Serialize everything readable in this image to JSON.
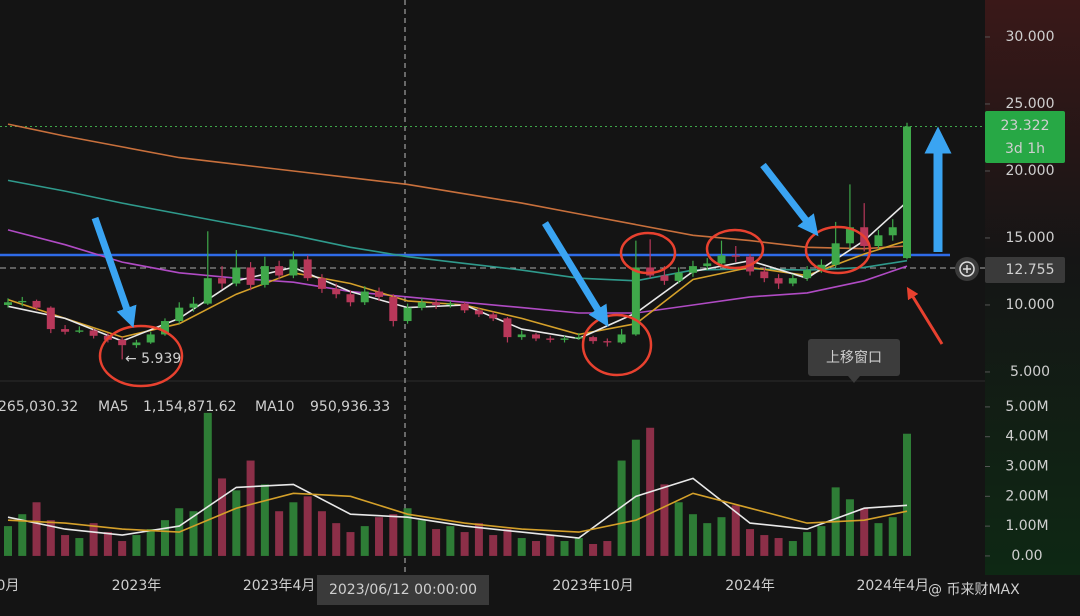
{
  "chart_data": {
    "type": "candlestick",
    "categories": [
      "0月",
      null,
      null,
      null,
      null,
      null,
      null,
      null,
      null,
      "2023年",
      null,
      null,
      null,
      null,
      null,
      null,
      null,
      null,
      null,
      "2023年4月",
      null,
      null,
      null,
      null,
      null,
      null,
      null,
      null,
      null,
      null,
      null,
      null,
      null,
      null,
      null,
      null,
      null,
      null,
      null,
      null,
      null,
      "2023年10月",
      null,
      null,
      null,
      null,
      null,
      null,
      null,
      null,
      null,
      null,
      "2024年",
      null,
      null,
      null,
      null,
      null,
      null,
      null,
      null,
      null,
      "2024年4月",
      null
    ],
    "candles": [
      [
        10.0,
        10.5,
        9.8,
        10.2
      ],
      [
        10.2,
        10.6,
        9.9,
        10.3
      ],
      [
        10.3,
        10.4,
        9.6,
        9.8
      ],
      [
        9.8,
        9.9,
        7.9,
        8.2
      ],
      [
        8.2,
        8.5,
        7.8,
        8.0
      ],
      [
        8.0,
        8.4,
        7.9,
        8.1
      ],
      [
        8.1,
        8.2,
        7.5,
        7.7
      ],
      [
        7.7,
        7.9,
        7.2,
        7.4
      ],
      [
        7.4,
        7.6,
        5.939,
        7.0
      ],
      [
        7.0,
        7.4,
        6.8,
        7.2
      ],
      [
        7.2,
        8.0,
        7.1,
        7.8
      ],
      [
        7.8,
        9.0,
        7.7,
        8.8
      ],
      [
        8.8,
        10.2,
        8.6,
        9.8
      ],
      [
        9.8,
        10.6,
        9.5,
        10.1
      ],
      [
        10.1,
        15.5,
        10.0,
        12.0
      ],
      [
        12.0,
        12.9,
        11.2,
        11.6
      ],
      [
        11.6,
        14.1,
        11.4,
        12.8
      ],
      [
        12.8,
        13.2,
        11.1,
        11.5
      ],
      [
        11.5,
        13.6,
        11.3,
        12.9
      ],
      [
        12.9,
        13.3,
        11.9,
        12.2
      ],
      [
        12.2,
        14.0,
        12.0,
        13.4
      ],
      [
        13.4,
        13.7,
        11.8,
        12.0
      ],
      [
        12.0,
        12.3,
        10.9,
        11.2
      ],
      [
        11.2,
        11.6,
        10.5,
        10.8
      ],
      [
        10.8,
        11.1,
        9.9,
        10.2
      ],
      [
        10.2,
        11.4,
        10.0,
        11.0
      ],
      [
        11.0,
        11.3,
        10.3,
        10.6
      ],
      [
        10.6,
        10.8,
        8.4,
        8.8
      ],
      [
        8.8,
        10.1,
        8.6,
        9.8
      ],
      [
        9.8,
        10.5,
        9.6,
        10.2
      ],
      [
        10.2,
        10.4,
        9.7,
        10.0
      ],
      [
        10.0,
        10.3,
        9.8,
        10.1
      ],
      [
        10.1,
        10.2,
        9.4,
        9.6
      ],
      [
        9.6,
        9.8,
        9.1,
        9.3
      ],
      [
        9.3,
        9.5,
        8.8,
        9.0
      ],
      [
        9.0,
        9.1,
        7.2,
        7.6
      ],
      [
        7.6,
        8.1,
        7.4,
        7.8
      ],
      [
        7.8,
        7.9,
        7.3,
        7.5
      ],
      [
        7.5,
        7.7,
        7.2,
        7.4
      ],
      [
        7.4,
        7.7,
        7.2,
        7.5
      ],
      [
        7.5,
        7.9,
        7.4,
        7.6
      ],
      [
        7.6,
        7.7,
        7.1,
        7.3
      ],
      [
        7.3,
        7.5,
        6.9,
        7.2
      ],
      [
        7.2,
        8.2,
        7.1,
        7.8
      ],
      [
        7.8,
        14.8,
        7.7,
        12.8
      ],
      [
        12.8,
        14.9,
        12.0,
        12.2
      ],
      [
        12.2,
        12.9,
        11.5,
        11.8
      ],
      [
        11.8,
        12.8,
        11.6,
        12.4
      ],
      [
        12.4,
        13.3,
        12.1,
        12.9
      ],
      [
        12.9,
        13.5,
        12.6,
        13.1
      ],
      [
        13.1,
        14.8,
        12.9,
        13.7
      ],
      [
        13.7,
        14.4,
        13.2,
        13.6
      ],
      [
        13.6,
        13.8,
        12.2,
        12.5
      ],
      [
        12.5,
        12.8,
        11.7,
        12.0
      ],
      [
        12.0,
        12.3,
        11.2,
        11.6
      ],
      [
        11.6,
        12.3,
        11.4,
        12.0
      ],
      [
        12.0,
        12.9,
        11.8,
        12.6
      ],
      [
        12.6,
        13.4,
        12.4,
        13.0
      ],
      [
        13.0,
        16.2,
        12.8,
        14.6
      ],
      [
        14.6,
        19.0,
        14.2,
        15.8
      ],
      [
        15.8,
        17.6,
        14.0,
        14.4
      ],
      [
        14.4,
        15.6,
        14.2,
        15.2
      ],
      [
        15.2,
        16.4,
        14.8,
        15.8
      ],
      [
        13.5,
        23.6,
        13.4,
        23.322
      ]
    ],
    "up_color": "#3fa84a",
    "down_color": "#b8385a",
    "ylim": [
      4.4,
      32.76
    ],
    "yticks": [
      {
        "value": 30,
        "label": "30.000"
      },
      {
        "value": 25,
        "label": "25.000"
      },
      {
        "value": 20,
        "label": "20.000"
      },
      {
        "value": 15,
        "label": "15.000"
      },
      {
        "value": 10,
        "label": "10.000"
      },
      {
        "value": 5,
        "label": "5.000"
      }
    ],
    "ma_x": [
      0,
      4,
      8,
      12,
      16,
      20,
      24,
      28,
      32,
      36,
      40,
      44,
      48,
      52,
      56,
      60,
      63
    ],
    "ma_series": [
      {
        "color": "#c8703c",
        "values": [
          23.5,
          22.6,
          21.8,
          21.0,
          20.5,
          20.0,
          19.5,
          19.0,
          18.3,
          17.6,
          16.8,
          16.0,
          15.2,
          14.8,
          14.3,
          14.2,
          14.4
        ]
      },
      {
        "color": "#2f9a8c",
        "values": [
          19.3,
          18.5,
          17.6,
          16.8,
          16.0,
          15.2,
          14.3,
          13.6,
          13.1,
          12.6,
          12.0,
          11.8,
          12.6,
          12.7,
          12.6,
          12.8,
          13.3
        ]
      },
      {
        "color": "#b04bc4",
        "values": [
          15.6,
          14.5,
          13.2,
          12.4,
          12.0,
          11.7,
          11.0,
          10.6,
          10.2,
          9.8,
          9.4,
          9.4,
          10.0,
          10.6,
          10.9,
          11.8,
          12.9
        ]
      },
      {
        "color": "#d4a02a",
        "values": [
          10.4,
          9.0,
          7.6,
          8.6,
          10.8,
          12.4,
          11.6,
          10.3,
          10.0,
          9.0,
          7.8,
          8.6,
          11.9,
          12.8,
          12.2,
          13.8,
          14.8
        ]
      },
      {
        "color": "#e8e8e8",
        "values": [
          9.9,
          9.0,
          7.3,
          9.0,
          11.8,
          12.8,
          11.0,
          9.8,
          10.0,
          8.2,
          7.5,
          9.4,
          12.5,
          13.3,
          12.0,
          14.8,
          17.7
        ]
      }
    ],
    "low_label": "← 5.939",
    "last_price": 23.322,
    "countdown": "3d 1h",
    "cross_price": 12.755,
    "crosshair_label": "2023/06/12 00:00:00",
    "tooltip": "上移窗口",
    "volume": [
      1000000,
      1400000,
      1800000,
      1200000,
      700000,
      600000,
      1100000,
      800000,
      500000,
      700000,
      900000,
      1200000,
      1600000,
      1500000,
      4800000,
      2600000,
      2200000,
      3200000,
      2400000,
      1500000,
      1800000,
      2000000,
      1500000,
      1100000,
      800000,
      1000000,
      1300000,
      1400000,
      1600000,
      1200000,
      900000,
      1000000,
      800000,
      1100000,
      700000,
      900000,
      600000,
      500000,
      700000,
      500000,
      600000,
      400000,
      500000,
      3200000,
      3900000,
      4300000,
      2400000,
      1800000,
      1400000,
      1100000,
      1300000,
      1700000,
      900000,
      700000,
      600000,
      500000,
      800000,
      1000000,
      2300000,
      1900000,
      1600000,
      1100000,
      1300000,
      4100000
    ],
    "volume_colors": {
      "up": "#2e7d36",
      "down": "#8c2f48"
    },
    "vlim": [
      -640000,
      5500000
    ],
    "vticks": [
      {
        "value": 5000000,
        "label": "5.00M"
      },
      {
        "value": 4000000,
        "label": "4.00M"
      },
      {
        "value": 3000000,
        "label": "3.00M"
      },
      {
        "value": 2000000,
        "label": "2.00M"
      },
      {
        "value": 1000000,
        "label": "1.00M"
      },
      {
        "value": 0,
        "label": "0.00"
      }
    ],
    "volume_label": "265,030.32",
    "volume_ma": [
      {
        "name": "MA5",
        "legend_value": "1,154,871.62",
        "color": "#e8e8e8",
        "values": [
          1300000,
          900000,
          700000,
          1000000,
          2300000,
          2400000,
          1400000,
          1300000,
          1000000,
          800000,
          600000,
          2000000,
          2600000,
          1100000,
          900000,
          1600000,
          1700000
        ]
      },
      {
        "name": "MA10",
        "legend_value": "950,936.33",
        "color": "#d4a02a",
        "values": [
          1200000,
          1100000,
          900000,
          800000,
          1600000,
          2100000,
          2000000,
          1400000,
          1100000,
          900000,
          800000,
          1200000,
          2100000,
          1600000,
          1100000,
          1200000,
          1500000
        ]
      }
    ],
    "watermark": "@ 币来财MAX"
  }
}
